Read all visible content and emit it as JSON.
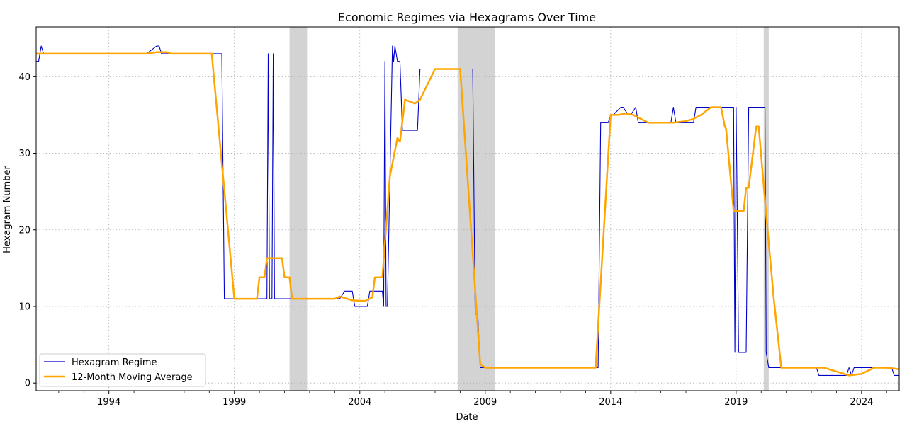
{
  "chart_data": {
    "type": "line",
    "title": "Economic Regimes via Hexagrams Over Time",
    "xlabel": "Date",
    "ylabel": "Hexagram Number",
    "xlim": [
      1991.1,
      2025.5
    ],
    "ylim": [
      -1,
      46.5
    ],
    "x_ticks": [
      1994,
      1999,
      2004,
      2009,
      2014,
      2019,
      2024
    ],
    "x_tick_labels": [
      "1994",
      "1999",
      "2004",
      "2009",
      "2014",
      "2019",
      "2024"
    ],
    "y_ticks": [
      0,
      10,
      20,
      30,
      40
    ],
    "y_tick_labels": [
      "0",
      "10",
      "20",
      "30",
      "40"
    ],
    "grid": true,
    "legend_position": "lower-left",
    "shaded_periods": [
      [
        2001.2,
        2001.9
      ],
      [
        2007.9,
        2009.4
      ],
      [
        2020.1,
        2020.3
      ]
    ],
    "series": [
      {
        "name": "Hexagram Regime",
        "color": "#0000cc",
        "x": [
          1991.1,
          1991.2,
          1991.3,
          1991.4,
          1995.5,
          1995.9,
          1996.0,
          1996.1,
          1998.2,
          1998.5,
          1998.6,
          2000.3,
          2000.35,
          2000.4,
          2000.5,
          2000.55,
          2000.6,
          2000.7,
          2000.75,
          2000.8,
          2003.2,
          2003.4,
          2003.7,
          2003.8,
          2004.3,
          2004.4,
          2004.9,
          2004.95,
          2005.0,
          2005.05,
          2005.1,
          2005.3,
          2005.35,
          2005.4,
          2005.5,
          2005.6,
          2005.7,
          2005.75,
          2006.3,
          2006.4,
          2008.5,
          2008.6,
          2008.7,
          2008.8,
          2013.3,
          2013.5,
          2013.6,
          2013.9,
          2014.0,
          2014.1,
          2014.4,
          2014.5,
          2014.7,
          2014.8,
          2015.0,
          2015.05,
          2015.1,
          2016.4,
          2016.5,
          2016.6,
          2017.3,
          2017.4,
          2017.9,
          2018.9,
          2018.95,
          2019.0,
          2019.1,
          2019.2,
          2019.4,
          2019.5,
          2020.1,
          2020.15,
          2020.2,
          2020.3,
          2022.2,
          2022.3,
          2023.4,
          2023.5,
          2023.6,
          2023.7,
          2025.2,
          2025.3,
          2025.5
        ],
        "values": [
          42,
          42,
          44,
          43,
          43,
          44,
          44,
          43,
          43,
          43,
          11,
          11,
          43,
          11,
          11,
          43,
          11,
          11,
          11,
          11,
          11,
          12,
          12,
          10,
          10,
          12,
          12,
          10,
          42,
          10,
          10,
          44,
          42,
          44,
          42,
          42,
          33,
          33,
          33,
          41,
          41,
          9,
          9,
          2,
          2,
          2,
          34,
          34,
          35,
          35,
          36,
          36,
          35,
          35,
          36,
          35,
          34,
          34,
          36,
          34,
          34,
          36,
          36,
          36,
          4,
          36,
          4,
          4,
          4,
          36,
          36,
          36,
          4,
          2,
          2,
          1,
          1,
          2,
          1,
          2,
          2,
          1,
          1
        ]
      },
      {
        "name": "12-Month Moving Average",
        "color": "#ffa500",
        "x": [
          1991.1,
          1991.6,
          1995.5,
          1995.9,
          1996.3,
          1996.5,
          1998.1,
          1999.0,
          1999.9,
          2000.0,
          2000.2,
          2000.3,
          2000.9,
          2001.0,
          2001.2,
          2001.3,
          2003.0,
          2003.2,
          2003.7,
          2004.2,
          2004.5,
          2004.6,
          2004.9,
          2005.2,
          2005.5,
          2005.6,
          2005.8,
          2006.2,
          2006.4,
          2007.0,
          2008.0,
          2008.8,
          2009.0,
          2009.2,
          2013.4,
          2014.0,
          2014.1,
          2014.3,
          2014.6,
          2014.9,
          2015.5,
          2016.5,
          2017.0,
          2017.3,
          2017.6,
          2018.0,
          2018.4,
          2018.55,
          2018.6,
          2018.9,
          2019.3,
          2019.4,
          2019.5,
          2019.8,
          2019.9,
          2020.2,
          2020.5,
          2020.8,
          2022.5,
          2023.0,
          2023.5,
          2024.0,
          2024.5,
          2025.0,
          2025.5
        ],
        "values": [
          43,
          43,
          43,
          43.2,
          43.2,
          43,
          43,
          11,
          11,
          13.8,
          13.8,
          16.3,
          16.3,
          13.8,
          13.8,
          11,
          11,
          11.3,
          10.8,
          10.7,
          11.2,
          13.8,
          13.8,
          27,
          32,
          31.5,
          37,
          36.5,
          37,
          41,
          41,
          2.5,
          2,
          2,
          2,
          35,
          35,
          35,
          35.2,
          35,
          34,
          34,
          34.2,
          34.5,
          35,
          36,
          36,
          33.5,
          33.2,
          22.5,
          22.5,
          25.5,
          25.5,
          33.5,
          33.5,
          22,
          11,
          2,
          2,
          1.5,
          1,
          1.2,
          2,
          2,
          1.8
        ]
      }
    ]
  }
}
